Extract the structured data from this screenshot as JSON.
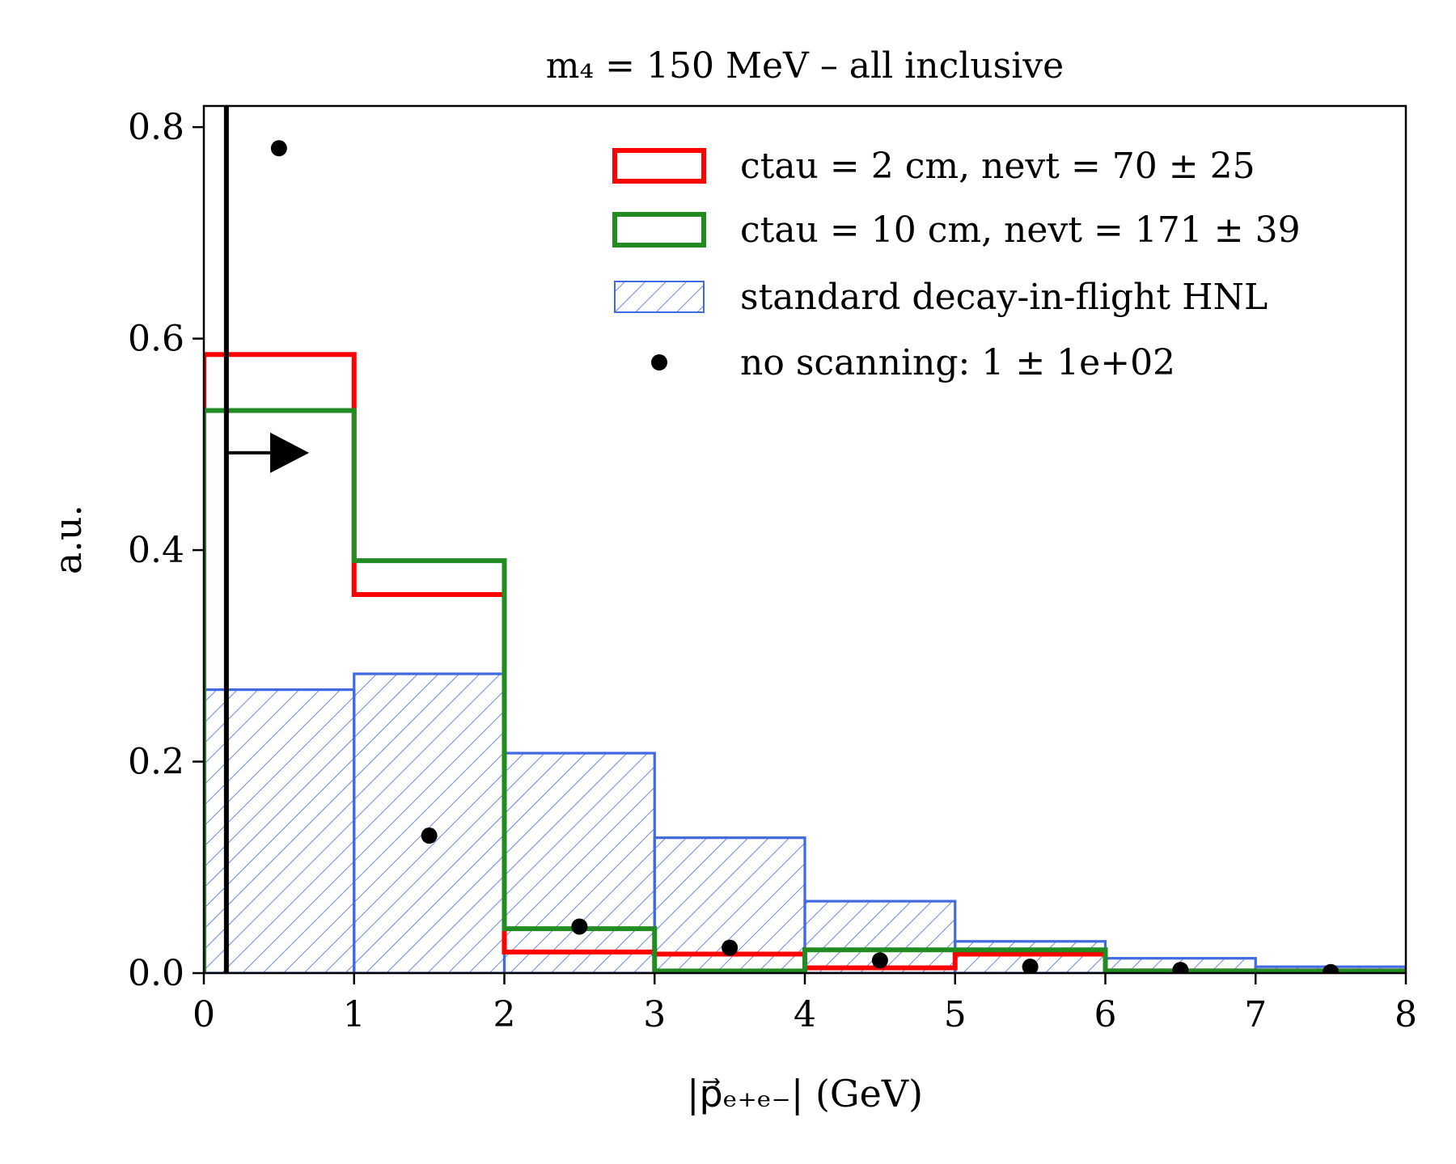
{
  "chart_data": {
    "type": "bar",
    "title": "m₄ = 150 MeV – all inclusive",
    "xlabel": "|p⃗ₑ₊ₑ₋| (GeV)",
    "ylabel": "a.u.",
    "xlim": [
      0,
      8
    ],
    "ylim": [
      0,
      0.82
    ],
    "xticks": [
      "0",
      "1",
      "2",
      "3",
      "4",
      "5",
      "6",
      "7",
      "8"
    ],
    "yticks": [
      "0.0",
      "0.2",
      "0.4",
      "0.6",
      "0.8"
    ],
    "bin_edges": [
      0,
      1,
      2,
      3,
      4,
      5,
      6,
      7,
      8
    ],
    "legend_position": "top-right",
    "grid": false,
    "series": [
      {
        "name": "ctau = 2 cm, nevt = 70 ± 25",
        "style": "step",
        "color": "#ff0000",
        "values": [
          0.585,
          0.358,
          0.02,
          0.018,
          0.005,
          0.018,
          0.002,
          0.002
        ]
      },
      {
        "name": "ctau = 10 cm, nevt = 171 ± 39",
        "style": "step",
        "color": "#228b22",
        "values": [
          0.532,
          0.39,
          0.042,
          0.002,
          0.022,
          0.022,
          0.002,
          0.002
        ]
      },
      {
        "name": "standard decay-in-flight HNL",
        "style": "hatched",
        "color": "#4169e1",
        "values": [
          0.268,
          0.283,
          0.208,
          0.128,
          0.068,
          0.03,
          0.014,
          0.006
        ]
      },
      {
        "name": "no scanning: 1 ± 1e+02",
        "style": "points",
        "color": "#000000",
        "x": [
          0.5,
          1.5,
          2.5,
          3.5,
          4.5,
          5.5,
          6.5,
          7.5
        ],
        "values": [
          0.78,
          0.13,
          0.044,
          0.024,
          0.012,
          0.006,
          0.003,
          0.001
        ]
      }
    ],
    "annotations": [
      {
        "type": "vertical-line",
        "x": 0.15
      },
      {
        "type": "arrow",
        "x_start": 0.15,
        "x_end": 0.7,
        "y": 0.492,
        "direction": "right"
      }
    ]
  }
}
